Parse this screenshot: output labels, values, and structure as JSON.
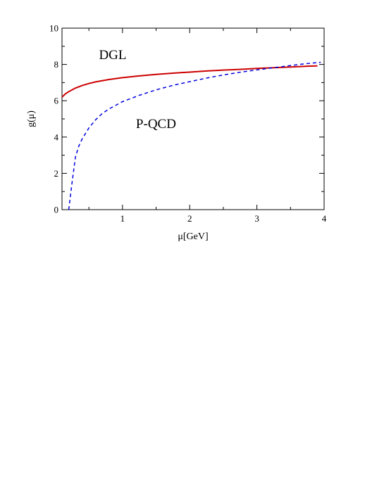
{
  "chart_data": {
    "type": "line",
    "xlabel": "μ[GeV]",
    "ylabel": "g(μ)",
    "xlim": [
      0.1,
      4.0
    ],
    "ylim": [
      0,
      10
    ],
    "xticks": [
      "1",
      "2",
      "3",
      "4"
    ],
    "yticks": [
      "0",
      "2",
      "4",
      "6",
      "8",
      "10"
    ],
    "grid": false,
    "series": [
      {
        "name": "DGL",
        "color": "#cc0000",
        "line_style": "solid",
        "x": [
          0.1,
          0.15,
          0.2,
          0.3,
          0.4,
          0.5,
          0.6,
          0.8,
          1.0,
          1.25,
          1.5,
          1.75,
          2.0,
          2.25,
          2.5,
          2.75,
          3.0,
          3.25,
          3.5,
          3.75,
          3.9
        ],
        "y": [
          6.2,
          6.38,
          6.5,
          6.7,
          6.84,
          6.95,
          7.04,
          7.17,
          7.27,
          7.37,
          7.45,
          7.52,
          7.58,
          7.64,
          7.69,
          7.73,
          7.78,
          7.82,
          7.86,
          7.9,
          7.92
        ]
      },
      {
        "name": "P-QCD",
        "color": "#0000dd",
        "line_style": "dashed",
        "x": [
          0.2,
          0.25,
          0.3,
          0.35,
          0.4,
          0.5,
          0.6,
          0.7,
          0.8,
          1.0,
          1.25,
          1.5,
          1.75,
          2.0,
          2.25,
          2.5,
          2.75,
          3.0,
          3.25,
          3.5,
          3.75,
          3.95
        ],
        "y": [
          0.0,
          1.5,
          2.9,
          3.5,
          3.9,
          4.5,
          4.95,
          5.3,
          5.55,
          5.95,
          6.3,
          6.6,
          6.85,
          7.05,
          7.25,
          7.42,
          7.57,
          7.7,
          7.82,
          7.94,
          8.05,
          8.12
        ]
      }
    ],
    "annotations": [
      {
        "text": "DGL",
        "x": 0.65,
        "y": 8.3
      },
      {
        "text": "P-QCD",
        "x": 1.2,
        "y": 4.5
      }
    ]
  }
}
